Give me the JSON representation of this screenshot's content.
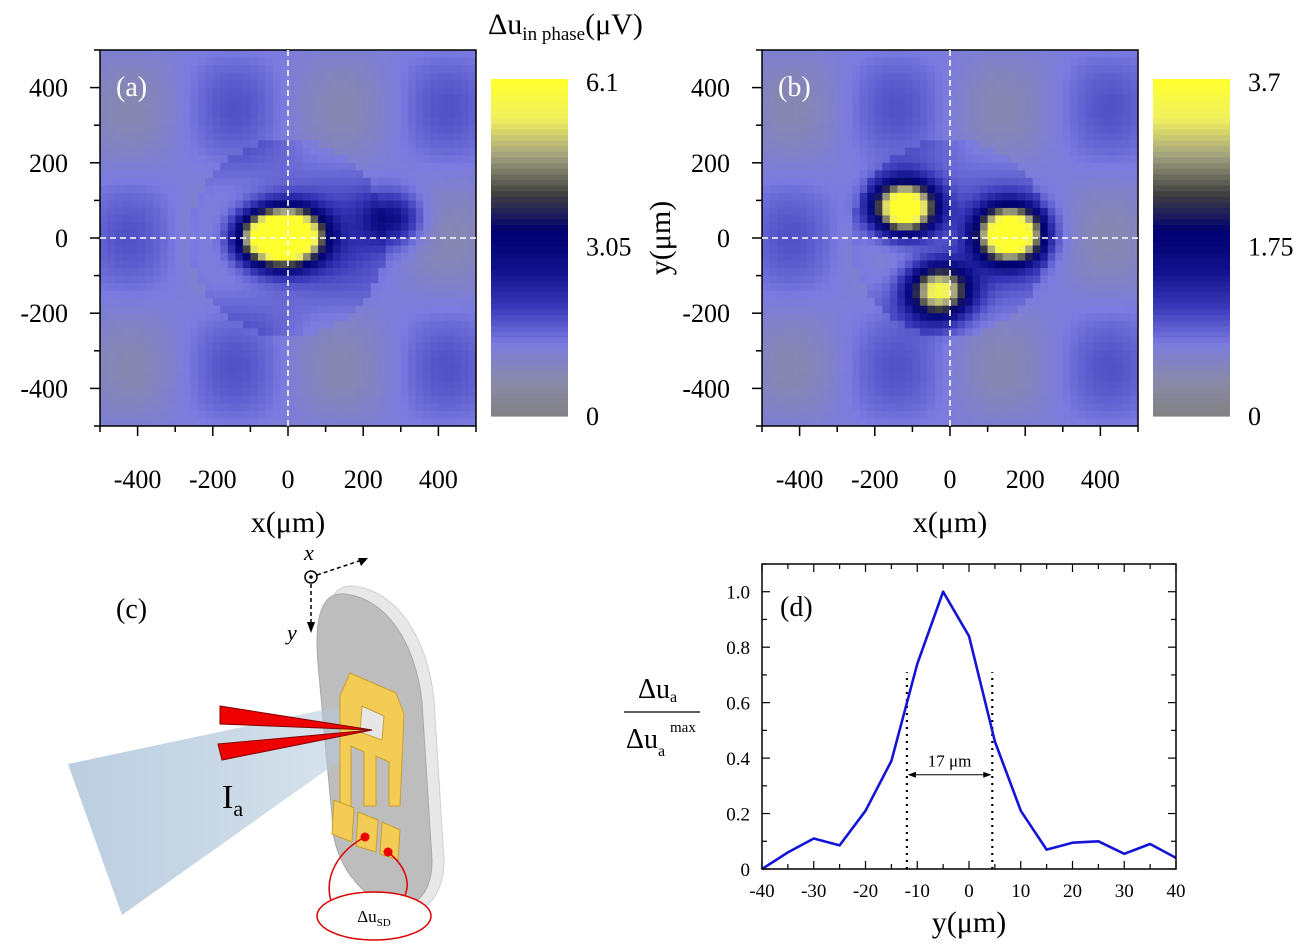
{
  "colorbar_title": {
    "main": "Δu",
    "sub": "in phase",
    "unit": "(μV)"
  },
  "colors": {
    "colormap": [
      "#808080",
      "#8a8aa8",
      "#7b7be0",
      "#3838b8",
      "#10108a",
      "#000070",
      "#404040",
      "#a0a080",
      "#f0f060",
      "#ffff30"
    ],
    "line": "#1414d6",
    "pad_gold": "#f2cc55",
    "pointer_red": "#ee0000",
    "beam": "#b3c8dc",
    "disc": "#c0c0c0"
  },
  "chart_data": [
    {
      "type": "heatmap",
      "panel_label": "(a)",
      "xlabel": "x(μm)",
      "ylabel": "",
      "xlim": [
        -500,
        500
      ],
      "ylim": [
        -500,
        500
      ],
      "x_ticks": [
        "-400",
        "-200",
        "0",
        "200",
        "400"
      ],
      "y_ticks": [
        "400",
        "200",
        "0",
        "-200",
        "-400"
      ],
      "colorbar_ticks": [
        "6.1",
        "3.05",
        "0"
      ],
      "zlim": [
        0,
        6.1
      ],
      "crosshair": {
        "x": 0,
        "y": 0
      },
      "hotspots": [
        {
          "x": 10,
          "y": 5,
          "peak": 6.1
        },
        {
          "x": -60,
          "y": 0,
          "peak": 4.5
        },
        {
          "x": 280,
          "y": 50,
          "peak": 1.5
        }
      ]
    },
    {
      "type": "heatmap",
      "panel_label": "(b)",
      "xlabel": "x(μm)",
      "ylabel": "y(μm)",
      "xlim": [
        -500,
        500
      ],
      "ylim": [
        -500,
        500
      ],
      "x_ticks": [
        "-400",
        "-200",
        "0",
        "200",
        "400"
      ],
      "y_ticks": [
        "400",
        "200",
        "0",
        "-200",
        "-400"
      ],
      "colorbar_ticks": [
        "3.7",
        "1.75",
        "0"
      ],
      "zlim": [
        0,
        3.7
      ],
      "crosshair": {
        "x": 0,
        "y": 0
      },
      "hotspots": [
        {
          "x": -120,
          "y": 80,
          "peak": 3.7
        },
        {
          "x": 160,
          "y": 10,
          "peak": 3.7
        },
        {
          "x": -30,
          "y": -140,
          "peak": 2.6
        }
      ]
    },
    {
      "type": "line",
      "panel_label": "(d)",
      "xlabel": "y(μm)",
      "ylabel_num": "Δu",
      "ylabel_num_sub": "a",
      "ylabel_den": "Δu",
      "ylabel_den_sub": "a",
      "ylabel_den_sup": "max",
      "xlim": [
        -40,
        40
      ],
      "ylim": [
        0,
        1.1
      ],
      "x_ticks": [
        "-40",
        "-30",
        "-20",
        "-10",
        "0",
        "10",
        "20",
        "30",
        "40"
      ],
      "y_ticks": [
        "0",
        "0.2",
        "0.4",
        "0.6",
        "0.8",
        "1.0"
      ],
      "x": [
        -40,
        -35,
        -30,
        -25,
        -20,
        -15,
        -10,
        -5,
        0,
        5,
        10,
        15,
        20,
        25,
        30,
        35,
        40
      ],
      "y": [
        0.0,
        0.06,
        0.11,
        0.085,
        0.21,
        0.39,
        0.74,
        1.0,
        0.84,
        0.46,
        0.21,
        0.07,
        0.095,
        0.1,
        0.055,
        0.09,
        0.04
      ],
      "fwhm_markers": [
        -12,
        4.5
      ],
      "annotation": "17 μm"
    }
  ],
  "diagram_c": {
    "panel_label": "(c)",
    "axis_x": "x",
    "axis_y": "y",
    "current_label": "I",
    "current_sub": "a",
    "signal_label": "Δu",
    "signal_sub": "SD"
  }
}
